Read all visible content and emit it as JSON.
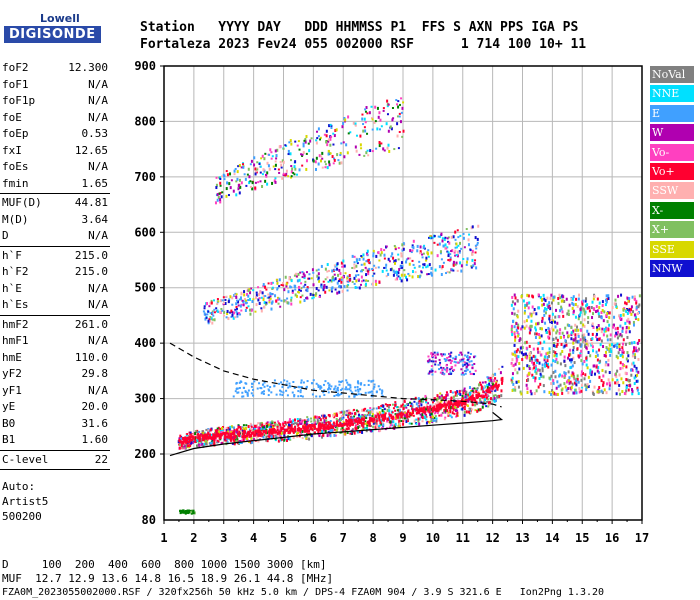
{
  "logo": {
    "top": "Lowell",
    "bottom": "DIGISONDE"
  },
  "header": {
    "row1": "Station   YYYY DAY   DDD HHMMSS P1  FFS S AXN PPS IGA PS",
    "row2": "Fortaleza 2023 Fev24 055 002000 RSF      1 714 100 10+ 11"
  },
  "params1": [
    {
      "k": "foF2",
      "v": "12.300"
    },
    {
      "k": "foF1",
      "v": "N/A"
    },
    {
      "k": "foF1p",
      "v": "N/A"
    },
    {
      "k": "foE",
      "v": "N/A"
    },
    {
      "k": "foEp",
      "v": "0.53"
    },
    {
      "k": "fxI",
      "v": "12.65"
    },
    {
      "k": "foEs",
      "v": "N/A"
    },
    {
      "k": "fmin",
      "v": "1.65"
    }
  ],
  "params2": [
    {
      "k": "MUF(D)",
      "v": "44.81"
    },
    {
      "k": "M(D)",
      "v": "3.64"
    },
    {
      "k": "D",
      "v": "N/A"
    }
  ],
  "params3": [
    {
      "k": "h`F",
      "v": "215.0"
    },
    {
      "k": "h`F2",
      "v": "215.0"
    },
    {
      "k": "h`E",
      "v": "N/A"
    },
    {
      "k": "h`Es",
      "v": "N/A"
    }
  ],
  "params4": [
    {
      "k": "hmF2",
      "v": "261.0"
    },
    {
      "k": "hmF1",
      "v": "N/A"
    },
    {
      "k": "hmE",
      "v": "110.0"
    },
    {
      "k": "yF2",
      "v": "29.8"
    },
    {
      "k": "yF1",
      "v": "N/A"
    },
    {
      "k": "yE",
      "v": "20.0"
    },
    {
      "k": "B0",
      "v": "31.6"
    },
    {
      "k": "B1",
      "v": "1.60"
    }
  ],
  "params5": [
    {
      "k": "C-level",
      "v": "22"
    }
  ],
  "auto": {
    "line1": "Auto:",
    "line2": "Artist5",
    "line3": "500200"
  },
  "bottom": {
    "dline": "D     100  200  400  600  800 1000 1500 3000 [km]",
    "mufline": "MUF  12.7 12.9 13.6 14.8 16.5 18.9 26.1 44.8 [MHz]",
    "footer": "FZA0M_2023055002000.RSF / 320fx256h 50 kHz 5.0 km / DPS-4 FZA0M 904 / 3.9 S 321.6 E   Ion2Png 1.3.20"
  },
  "legend": [
    {
      "label": "NoVal",
      "color": "#808080"
    },
    {
      "label": "NNE",
      "color": "#00e0ff"
    },
    {
      "label": "E",
      "color": "#40a0ff"
    },
    {
      "label": "W",
      "color": "#b000b0"
    },
    {
      "label": "Vo-",
      "color": "#ff40c0"
    },
    {
      "label": "Vo+",
      "color": "#ff0030"
    },
    {
      "label": "SSW",
      "color": "#ffb0b0"
    },
    {
      "label": "X-",
      "color": "#008000"
    },
    {
      "label": "X+",
      "color": "#80c060"
    },
    {
      "label": "SSE",
      "color": "#d8d800"
    },
    {
      "label": "NNW",
      "color": "#1010d0"
    }
  ],
  "chart_data": {
    "type": "scatter",
    "x_ticks": [
      "1",
      "2",
      "3",
      "4",
      "5",
      "6",
      "7",
      "8",
      "9",
      "10",
      "11",
      "12",
      "13",
      "14",
      "15",
      "16",
      "17"
    ],
    "y_ticks": [
      "80",
      "200",
      "300",
      "400",
      "500",
      "600",
      "700",
      "800",
      "900"
    ],
    "xlim": [
      1,
      17
    ],
    "y_gridlines": [
      200,
      300,
      400,
      500,
      600,
      700,
      800,
      900
    ],
    "y_axis_bottom": 80,
    "grid": true,
    "series": [
      {
        "trace": "F2 O-mode base",
        "x": [
          1.45,
          2,
          3,
          4,
          5,
          6,
          7,
          8,
          9,
          10,
          11,
          11.5,
          12,
          12.3
        ],
        "y": [
          225,
          230,
          235,
          240,
          245,
          250,
          258,
          265,
          275,
          285,
          295,
          305,
          320,
          335
        ]
      },
      {
        "trace": "2F echo",
        "x": [
          2.3,
          3,
          4,
          5,
          6,
          7,
          8,
          9,
          10,
          10.5,
          11,
          11.5
        ],
        "y": [
          455,
          465,
          480,
          495,
          510,
          525,
          540,
          550,
          560,
          565,
          570,
          575
        ]
      },
      {
        "trace": "3F echo",
        "x": [
          2.7,
          3.5,
          4.5,
          5.5,
          6.5,
          7.5,
          8.5,
          9
        ],
        "y": [
          675,
          700,
          720,
          740,
          760,
          780,
          795,
          805
        ]
      },
      {
        "trace": "E-region spread",
        "x": [
          1.5,
          1.6,
          1.7,
          1.8,
          1.9,
          2.0
        ],
        "y": [
          97,
          97,
          97,
          97,
          97,
          97
        ]
      }
    ],
    "profile_dashed": {
      "x": [
        1.2,
        2,
        3,
        4,
        5,
        6,
        7,
        8,
        9,
        10,
        11,
        12,
        12.3
      ],
      "y": [
        400,
        375,
        350,
        335,
        325,
        315,
        310,
        305,
        300,
        298,
        295,
        290,
        285
      ]
    },
    "profile_solid": {
      "x": [
        1.2,
        2,
        3,
        4,
        5,
        6,
        7,
        8,
        9,
        10,
        11,
        12,
        12.3
      ],
      "y": [
        197,
        210,
        218,
        224,
        230,
        236,
        240,
        244,
        248,
        252,
        256,
        260,
        262
      ]
    }
  }
}
